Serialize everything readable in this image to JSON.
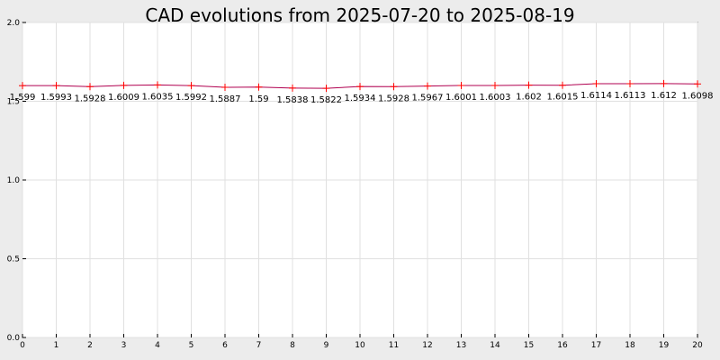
{
  "chart_data": {
    "type": "line",
    "title": "CAD evolutions from 2025-07-20 to 2025-08-19",
    "xlabel": "",
    "ylabel": "",
    "x": [
      0,
      1,
      2,
      3,
      4,
      5,
      6,
      7,
      8,
      9,
      10,
      11,
      12,
      13,
      14,
      15,
      16,
      17,
      18,
      19,
      20
    ],
    "values": [
      1.599,
      1.5993,
      1.5928,
      1.6009,
      1.6035,
      1.5992,
      1.5887,
      1.59,
      1.5838,
      1.5822,
      1.5934,
      1.5928,
      1.5967,
      1.6001,
      1.6003,
      1.602,
      1.6015,
      1.6114,
      1.6113,
      1.612,
      1.6098
    ],
    "value_labels": [
      "1.599",
      "1.5993",
      "1.5928",
      "1.6009",
      "1.6035",
      "1.5992",
      "1.5887",
      "1.59",
      "1.5838",
      "1.5822",
      "1.5934",
      "1.5928",
      "1.5967",
      "1.6001",
      "1.6003",
      "1.602",
      "1.6015",
      "1.6114",
      "1.6113",
      "1.612",
      "1.6098"
    ],
    "xlim": [
      0,
      20
    ],
    "ylim": [
      0,
      2
    ],
    "x_ticks": [
      "0",
      "1",
      "2",
      "3",
      "4",
      "5",
      "6",
      "7",
      "8",
      "9",
      "10",
      "11",
      "12",
      "13",
      "14",
      "15",
      "16",
      "17",
      "18",
      "19",
      "20"
    ],
    "y_ticks": [
      "0.0",
      "0.5",
      "1.0",
      "1.5",
      "2.0"
    ],
    "grid": true,
    "line_color": "#b00050",
    "marker_color": "#ff0000",
    "background": "#ffffff",
    "page_background": "#ececec",
    "grid_color": "#e0e0e0"
  }
}
